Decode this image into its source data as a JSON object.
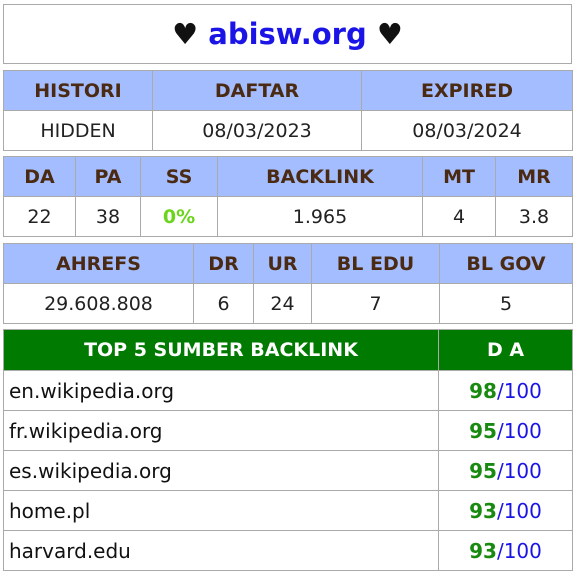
{
  "title": {
    "heart_left": "♥",
    "site": "abisw.org",
    "heart_right": "♥"
  },
  "registration": {
    "headers": [
      "HISTORI",
      "DAFTAR",
      "EXPIRED"
    ],
    "values": [
      "HIDDEN",
      "08/03/2023",
      "08/03/2024"
    ]
  },
  "metrics": {
    "headers": [
      "DA",
      "PA",
      "SS",
      "BACKLINK",
      "MT",
      "MR"
    ],
    "values": [
      "22",
      "38",
      "0%",
      "1.965",
      "4",
      "3.8"
    ]
  },
  "ahrefs": {
    "headers": [
      "AHREFS",
      "DR",
      "UR",
      "BL EDU",
      "BL GOV"
    ],
    "values": [
      "29.608.808",
      "6",
      "24",
      "7",
      "5"
    ]
  },
  "top_backlinks": {
    "header_source": "TOP 5 SUMBER BACKLINK",
    "header_da": "D A",
    "separator": "/",
    "rows": [
      {
        "domain": "en.wikipedia.org",
        "da": "98",
        "max": "100"
      },
      {
        "domain": "fr.wikipedia.org",
        "da": "95",
        "max": "100"
      },
      {
        "domain": "es.wikipedia.org",
        "da": "95",
        "max": "100"
      },
      {
        "domain": "home.pl",
        "da": "93",
        "max": "100"
      },
      {
        "domain": "harvard.edu",
        "da": "93",
        "max": "100"
      }
    ]
  },
  "colors": {
    "header_bg": "#a4bdff",
    "header_text": "#4a2a12",
    "green_header_bg": "#007a00",
    "site_link": "#1a14e6",
    "da_green": "#198a10",
    "ss_lime": "#6bd41c"
  }
}
